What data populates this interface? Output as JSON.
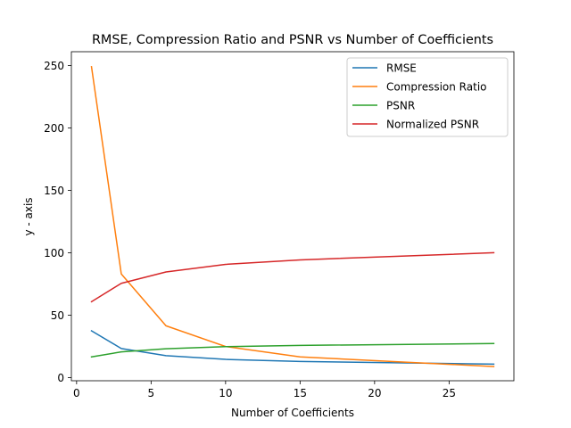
{
  "chart_data": {
    "type": "line",
    "title": "RMSE, Compression Ratio and PSNR vs Number of Coefficients",
    "xlabel": "Number of Coefficients",
    "ylabel": "y - axis",
    "xlim": [
      -0.35,
      29.35
    ],
    "ylim": [
      -2.5,
      261.0
    ],
    "xticks": [
      0,
      5,
      10,
      15,
      20,
      25
    ],
    "yticks": [
      0,
      50,
      100,
      150,
      200,
      250
    ],
    "grid": false,
    "legend_position": "top-right",
    "x": [
      1,
      3,
      6,
      10,
      15,
      28
    ],
    "series": [
      {
        "name": "RMSE",
        "color": "#1f77b4",
        "values": [
          37.5,
          23.3,
          17.6,
          14.6,
          12.9,
          10.8
        ]
      },
      {
        "name": "Compression Ratio",
        "color": "#ff7f0e",
        "values": [
          249.0,
          83.0,
          41.5,
          24.9,
          16.6,
          8.9
        ]
      },
      {
        "name": "PSNR",
        "color": "#2ca02c",
        "values": [
          16.6,
          20.6,
          23.1,
          24.8,
          25.8,
          27.3
        ]
      },
      {
        "name": "Normalized PSNR",
        "color": "#d62728",
        "values": [
          60.8,
          75.5,
          84.6,
          90.7,
          94.3,
          100.0
        ]
      }
    ]
  }
}
